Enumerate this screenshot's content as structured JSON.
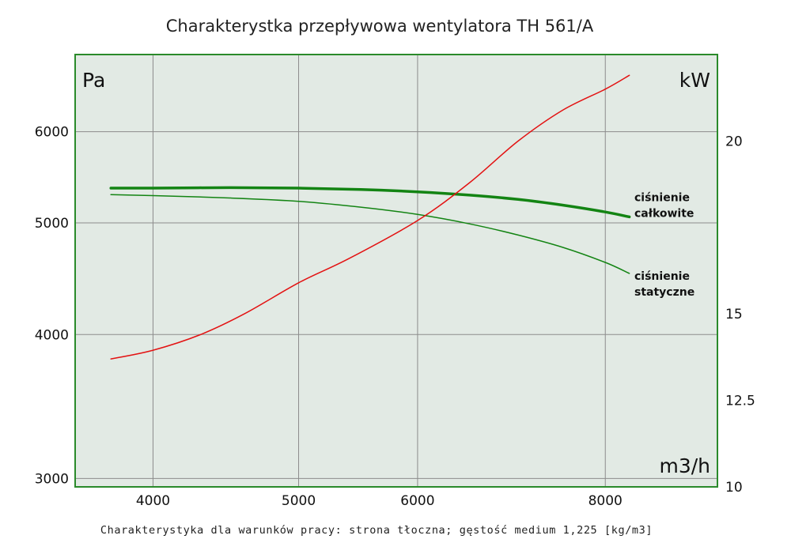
{
  "chart_data": {
    "type": "line",
    "title": "Charakterystka przepływowa wentylatora TH 561/A",
    "footnote": "Charakterystyka dla warunków pracy: strona tłoczna; gęstość medium 1,225 [kg/m3]",
    "x_unit_label": "m3/h",
    "y_left_unit_label": "Pa",
    "y_right_unit_label": "kW",
    "x_scale": "log",
    "y_left_scale": "log",
    "xlim": [
      3550,
      9500
    ],
    "x_ticks": [
      {
        "value": 4000,
        "label": "4000"
      },
      {
        "value": 5000,
        "label": "5000"
      },
      {
        "value": 6000,
        "label": "6000"
      },
      {
        "value": 8000,
        "label": "8000"
      }
    ],
    "y_left_lim": [
      2950,
      7000
    ],
    "y_left_ticks": [
      {
        "value": 3000,
        "label": "3000"
      },
      {
        "value": 4000,
        "label": "4000"
      },
      {
        "value": 5000,
        "label": "5000"
      },
      {
        "value": 6000,
        "label": "6000"
      }
    ],
    "y_right_lim": [
      10,
      22.5
    ],
    "y_right_ticks": [
      {
        "value": 10,
        "label": "10"
      },
      {
        "value": 12.5,
        "label": "12.5"
      },
      {
        "value": 15,
        "label": "15"
      },
      {
        "value": 20,
        "label": "20"
      }
    ],
    "series": [
      {
        "name": "ciśnienie całkowite",
        "label_lines": [
          "ciśnienie",
          "całkowite"
        ],
        "axis": "left",
        "color": "#138413",
        "width": 3.5,
        "x": [
          3750,
          4000,
          4500,
          5000,
          5500,
          6000,
          6500,
          7000,
          7500,
          8000,
          8300
        ],
        "y": [
          5360,
          5360,
          5365,
          5360,
          5345,
          5320,
          5285,
          5240,
          5180,
          5110,
          5060
        ]
      },
      {
        "name": "ciśnienie statyczne",
        "label_lines": [
          "ciśnienie",
          "statyczne"
        ],
        "axis": "left",
        "color": "#138413",
        "width": 1.5,
        "x": [
          3750,
          4000,
          4500,
          5000,
          5500,
          6000,
          6500,
          7000,
          7500,
          8000,
          8300
        ],
        "y": [
          5290,
          5280,
          5255,
          5220,
          5160,
          5085,
          4990,
          4880,
          4760,
          4620,
          4520
        ]
      },
      {
        "name": "moc",
        "label_lines": [],
        "axis": "right",
        "color": "#e31212",
        "width": 1.5,
        "x": [
          3750,
          4000,
          4300,
          4600,
          5000,
          5400,
          6000,
          6500,
          7000,
          7500,
          8000,
          8300
        ],
        "y": [
          13.7,
          13.95,
          14.4,
          15.0,
          15.9,
          16.6,
          17.7,
          18.8,
          20.0,
          20.9,
          21.5,
          21.9
        ]
      }
    ]
  }
}
